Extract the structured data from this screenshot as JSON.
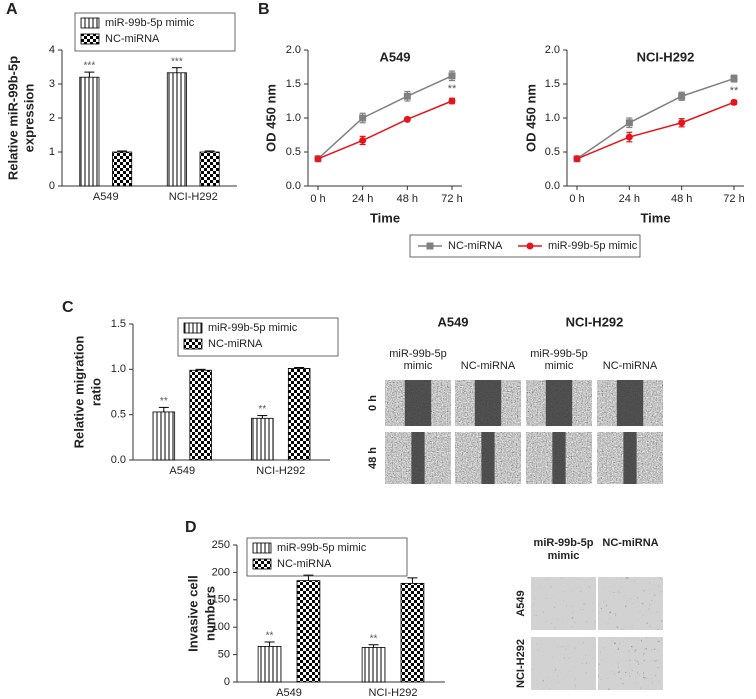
{
  "chart_data": [
    {
      "type": "bar",
      "panel_label": "A",
      "ylabel": [
        "Relative miR-99b-5p",
        "expression"
      ],
      "categories": [
        "A549",
        "NCI-H292"
      ],
      "series": [
        {
          "name": "miR-99b-5p mimic",
          "color": "#000000",
          "pattern": "vertical-stripes",
          "values": [
            3.2,
            3.33
          ],
          "errors": [
            0.15,
            0.15
          ],
          "annotations": [
            "***",
            "***"
          ]
        },
        {
          "name": "NC-miRNA",
          "color": "#000000",
          "pattern": "checkerboard",
          "values": [
            1.0,
            1.0
          ],
          "errors": [
            0.03,
            0.03
          ]
        }
      ],
      "ylim": [
        0,
        4
      ],
      "yticks": [
        0,
        1,
        2,
        3,
        4
      ],
      "legend": "top-left"
    },
    {
      "type": "line",
      "panel_label": "B",
      "title": "A549",
      "xlabel": "Time",
      "ylabel": "OD 450 nm",
      "categories": [
        "0 h",
        "24 h",
        "48 h",
        "72 h"
      ],
      "series": [
        {
          "name": "NC-miRNA",
          "color": "#808080",
          "marker": "square",
          "values": [
            0.4,
            1.0,
            1.32,
            1.62
          ],
          "errors": [
            0.02,
            0.07,
            0.07,
            0.07
          ]
        },
        {
          "name": "miR-99b-5p mimic",
          "color": "#e8141b",
          "marker": "circle",
          "values": [
            0.4,
            0.67,
            0.98,
            1.25
          ],
          "errors": [
            0.02,
            0.06,
            0.02,
            0.04
          ],
          "annotations": [
            null,
            null,
            null,
            "**"
          ]
        }
      ],
      "ylim": [
        0,
        2
      ],
      "yticks": [
        {
          "value": 0,
          "label": "0.0"
        },
        0.5,
        {
          "value": 1,
          "label": "1.0"
        },
        1.5,
        {
          "value": 2,
          "label": "2.0"
        }
      ],
      "legend": "bottom"
    },
    {
      "type": "line",
      "title": "NCI-H292",
      "xlabel": "Time",
      "ylabel": "OD 450 nm",
      "categories": [
        "0 h",
        "24 h",
        "48 h",
        "72 h"
      ],
      "series": [
        {
          "color": "#808080",
          "marker": "square",
          "values": [
            0.4,
            0.93,
            1.32,
            1.58
          ],
          "errors": [
            0.02,
            0.07,
            0.06,
            0.05
          ]
        },
        {
          "color": "#e8141b",
          "marker": "circle",
          "values": [
            0.4,
            0.72,
            0.93,
            1.23
          ],
          "errors": [
            0.02,
            0.07,
            0.06,
            0.03
          ],
          "annotations": [
            null,
            null,
            null,
            "**"
          ]
        }
      ],
      "ylim": [
        0,
        2
      ],
      "yticks": [
        {
          "value": 0,
          "label": "0.0"
        },
        0.5,
        {
          "value": 1,
          "label": "1.0"
        },
        1.5,
        {
          "value": 2,
          "label": "2.0"
        }
      ]
    },
    {
      "type": "bar",
      "panel_label": "C",
      "ylabel": [
        "Relative migration",
        "ratio"
      ],
      "categories": [
        "A549",
        "NCI-H292"
      ],
      "series": [
        {
          "name": "miR-99b-5p mimic",
          "color": "#000000",
          "pattern": "vertical-stripes",
          "values": [
            0.53,
            0.46
          ],
          "errors": [
            0.05,
            0.03
          ],
          "annotations": [
            "**",
            "**"
          ]
        },
        {
          "name": "NC-miRNA",
          "color": "#000000",
          "pattern": "checkerboard",
          "values": [
            0.99,
            1.01
          ],
          "errors": [
            0.01,
            0.01
          ]
        }
      ],
      "ylim": [
        0,
        1.5
      ],
      "yticks": [
        {
          "value": 0,
          "label": "0.0"
        },
        0.5,
        {
          "value": 1,
          "label": "1.0"
        },
        1.5
      ],
      "legend": "top-left"
    },
    {
      "type": "bar",
      "panel_label": "D",
      "ylabel": [
        "Invasive cell",
        "numbers"
      ],
      "categories": [
        "A549",
        "NCI-H292"
      ],
      "series": [
        {
          "name": "miR-99b-5p mimic",
          "color": "#000000",
          "pattern": "vertical-stripes",
          "values": [
            65,
            63
          ],
          "errors": [
            8,
            5
          ],
          "annotations": [
            "**",
            "**"
          ]
        },
        {
          "name": "NC-miRNA",
          "color": "#000000",
          "pattern": "checkerboard",
          "values": [
            185,
            180
          ],
          "errors": [
            10,
            10
          ]
        }
      ],
      "ylim": [
        0,
        250
      ],
      "yticks": [
        0,
        50,
        100,
        150,
        200,
        250
      ],
      "legend": "top-left"
    }
  ],
  "micrographs": [
    {
      "groups": [
        "A549",
        "NCI-H292"
      ],
      "columns": [
        [
          "miR-99b-5p",
          "mimic"
        ],
        "NC-miRNA",
        [
          "miR-99b-5p",
          "mimic"
        ],
        "NC-miRNA"
      ],
      "rows": [
        "0 h",
        "48 h"
      ]
    },
    {
      "columns": [
        [
          "miR-99b-5p",
          "mimic"
        ],
        "NC-miRNA"
      ],
      "rows": [
        "A549",
        "NCI-H292"
      ]
    }
  ]
}
